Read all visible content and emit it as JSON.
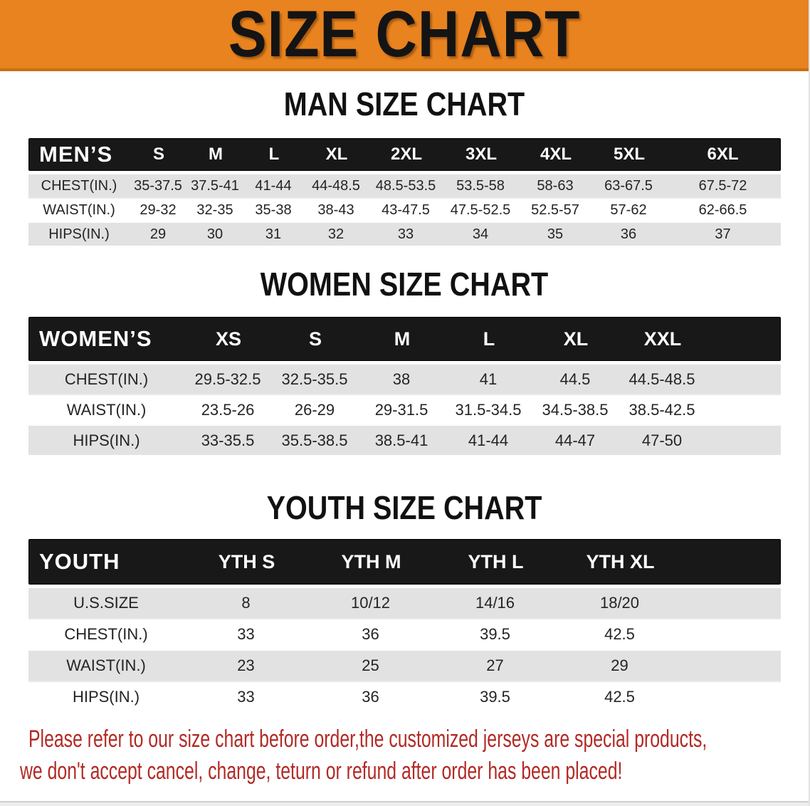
{
  "banner": {
    "title": "SIZE CHART"
  },
  "colors": {
    "banner_orange": "#E8831F",
    "banner_edge_orange": "#C96F12",
    "band_black": "#181818",
    "row_gray": "#E2E2E2",
    "row_white": "#FFFFFF",
    "note_red": "#B22A25",
    "title_text": "#141414"
  },
  "men_chart": {
    "heading": "MAN SIZE CHART",
    "header_row": [
      "MEN’S",
      "S",
      "M",
      "L",
      "XL",
      "2XL",
      "3XL",
      "4XL",
      "5XL",
      "6XL"
    ],
    "rows": [
      [
        "CHEST(IN.)",
        "35-37.5",
        "37.5-41",
        "41-44",
        "44-48.5",
        "48.5-53.5",
        "53.5-58",
        "58-63",
        "63-67.5",
        "67.5-72"
      ],
      [
        "WAIST(IN.)",
        "29-32",
        "32-35",
        "35-38",
        "38-43",
        "43-47.5",
        "47.5-52.5",
        "52.5-57",
        "57-62",
        "62-66.5"
      ],
      [
        "HIPS(IN.)",
        "29",
        "30",
        "31",
        "32",
        "33",
        "34",
        "35",
        "36",
        "37"
      ]
    ]
  },
  "women_chart": {
    "heading": "WOMEN SIZE CHART",
    "header_row": [
      "WOMEN’S",
      "XS",
      "S",
      "M",
      "L",
      "XL",
      "XXL"
    ],
    "rows": [
      [
        "CHEST(IN.)",
        "29.5-32.5",
        "32.5-35.5",
        "38",
        "41",
        "44.5",
        "44.5-48.5"
      ],
      [
        "WAIST(IN.)",
        "23.5-26",
        "26-29",
        "29-31.5",
        "31.5-34.5",
        "34.5-38.5",
        "38.5-42.5"
      ],
      [
        "HIPS(IN.)",
        "33-35.5",
        "35.5-38.5",
        "38.5-41",
        "41-44",
        "44-47",
        "47-50"
      ]
    ]
  },
  "youth_chart": {
    "heading": "YOUTH SIZE CHART",
    "header_row": [
      "YOUTH",
      "YTH S",
      "YTH M",
      "YTH L",
      "YTH XL"
    ],
    "rows": [
      [
        "U.S.SIZE",
        "8",
        "10/12",
        "14/16",
        "18/20"
      ],
      [
        "CHEST(IN.)",
        "33",
        "36",
        "39.5",
        "42.5"
      ],
      [
        "WAIST(IN.)",
        "23",
        "25",
        "27",
        "29"
      ],
      [
        "HIPS(IN.)",
        "33",
        "36",
        "39.5",
        "42.5"
      ]
    ]
  },
  "footer_note": {
    "line1": "Please refer to our size chart before order,the customized jerseys are special products,",
    "line2": "we don't accept cancel, change, teturn or refund after order has been placed!"
  }
}
